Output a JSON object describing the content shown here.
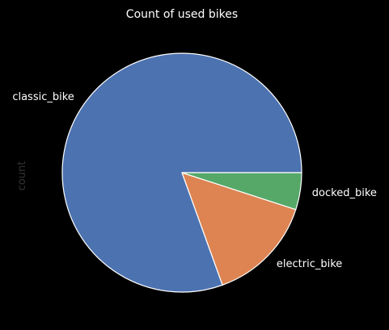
{
  "chart_data": {
    "type": "pie",
    "title": "Count of used bikes",
    "ylabel": "count",
    "start_angle_deg": 0,
    "direction": "counterclockwise",
    "edge_color": "#ffffff",
    "slices": [
      {
        "label": "classic_bike",
        "value": 80.5,
        "color": "#4c72b0"
      },
      {
        "label": "electric_bike",
        "value": 14.5,
        "color": "#dd8452"
      },
      {
        "label": "docked_bike",
        "value": 5.0,
        "color": "#55a868"
      }
    ]
  }
}
